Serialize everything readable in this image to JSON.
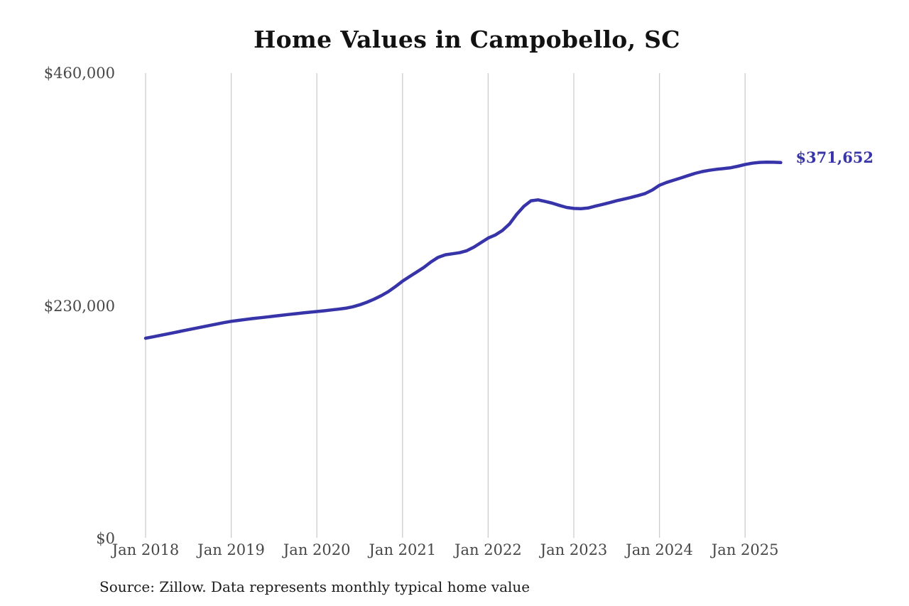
{
  "colors": {
    "line": "#3733a8",
    "end_label": "#3733a8",
    "grid": "#cccccc",
    "axis_text": "#474747",
    "title_text": "#121212",
    "source_text": "#1c1c1c",
    "background": "#ffffff"
  },
  "chart_data": {
    "type": "line",
    "title": "Home Values in Campobello, SC",
    "source_note": "Source: Zillow. Data represents monthly typical home value",
    "end_label": "$371,652",
    "end_value": 371652,
    "xlabel": "",
    "ylabel": "",
    "ylim": [
      0,
      460000
    ],
    "grid": "vertical-only",
    "legend": "none",
    "x_start": "2018-01",
    "x_interval": "month",
    "x_end": "2025-06",
    "x_tick_labels": [
      "Jan 2018",
      "Jan 2019",
      "Jan 2020",
      "Jan 2021",
      "Jan 2022",
      "Jan 2023",
      "Jan 2024",
      "Jan 2025"
    ],
    "y_ticks": [
      {
        "value": 0,
        "label": "$0"
      },
      {
        "value": 230000,
        "label": "$230,000"
      },
      {
        "value": 460000,
        "label": "$460,000"
      }
    ],
    "series": [
      {
        "name": "Monthly typical home value",
        "values": [
          198000,
          199300,
          200700,
          202100,
          203500,
          205000,
          206400,
          207800,
          209200,
          210600,
          212000,
          213400,
          214700,
          215600,
          216500,
          217400,
          218200,
          219000,
          219800,
          220600,
          221400,
          222200,
          223000,
          223700,
          224400,
          225100,
          225900,
          226700,
          227600,
          229000,
          231000,
          233500,
          236500,
          240000,
          244000,
          249000,
          254400,
          259000,
          263500,
          268000,
          273500,
          278000,
          280500,
          281500,
          282500,
          284500,
          288000,
          292500,
          297000,
          300000,
          304500,
          311000,
          320500,
          328300,
          333900,
          334800,
          333200,
          331500,
          329200,
          327300,
          326300,
          326100,
          326700,
          328500,
          330200,
          332000,
          333900,
          335500,
          337200,
          339000,
          341000,
          344500,
          349200,
          352000,
          354200,
          356400,
          358700,
          361000,
          362700,
          364000,
          365000,
          365700,
          366500,
          368000,
          369700,
          371000,
          371800,
          372100,
          371900,
          371652
        ]
      }
    ]
  }
}
